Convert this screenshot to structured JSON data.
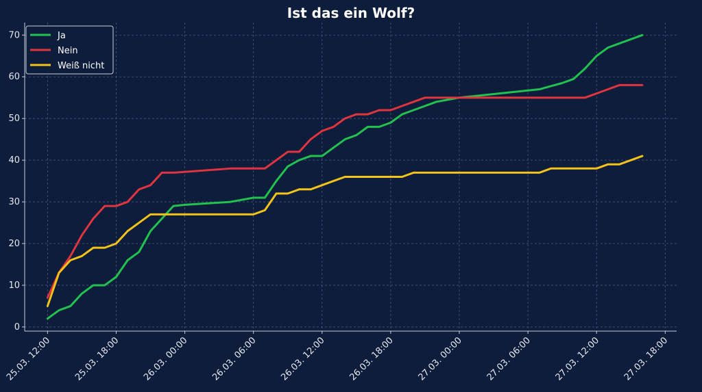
{
  "chart_data": {
    "type": "line",
    "title": "Ist das ein Wolf?",
    "xlabel": "",
    "ylabel": "",
    "x_unit": "hours since 25.03. 12:00",
    "xlim": [
      -2,
      55
    ],
    "ylim": [
      -1,
      73
    ],
    "yticks": [
      0,
      10,
      20,
      30,
      40,
      50,
      60,
      70
    ],
    "xticks": [
      {
        "value": 0,
        "label": "25.03. 12:00"
      },
      {
        "value": 6,
        "label": "25.03. 18:00"
      },
      {
        "value": 12,
        "label": "26.03. 00:00"
      },
      {
        "value": 18,
        "label": "26.03. 06:00"
      },
      {
        "value": 24,
        "label": "26.03. 12:00"
      },
      {
        "value": 30,
        "label": "26.03. 18:00"
      },
      {
        "value": 36,
        "label": "27.03. 00:00"
      },
      {
        "value": 42,
        "label": "27.03. 06:00"
      },
      {
        "value": 48,
        "label": "27.03. 12:00"
      },
      {
        "value": 54,
        "label": "27.03. 18:00"
      }
    ],
    "grid": true,
    "legend_position": "top-left",
    "series": [
      {
        "name": "Ja",
        "color": "#22c24e",
        "points": [
          [
            0,
            2
          ],
          [
            1,
            4
          ],
          [
            2,
            5
          ],
          [
            3,
            8
          ],
          [
            4,
            10
          ],
          [
            5,
            10
          ],
          [
            6,
            12
          ],
          [
            7,
            16
          ],
          [
            8,
            18
          ],
          [
            9,
            23
          ],
          [
            10,
            26
          ],
          [
            11,
            29
          ],
          [
            12,
            29.3
          ],
          [
            16,
            30
          ],
          [
            18,
            31
          ],
          [
            19,
            31
          ],
          [
            20,
            35
          ],
          [
            21,
            38.5
          ],
          [
            22,
            40
          ],
          [
            23,
            41
          ],
          [
            24,
            41
          ],
          [
            25,
            43
          ],
          [
            26,
            45
          ],
          [
            27,
            46
          ],
          [
            28,
            48
          ],
          [
            29,
            48
          ],
          [
            30,
            49
          ],
          [
            31,
            51
          ],
          [
            32,
            52
          ],
          [
            33,
            53
          ],
          [
            34,
            54
          ],
          [
            35,
            54.5
          ],
          [
            36,
            55
          ],
          [
            43,
            57
          ],
          [
            45,
            58.5
          ],
          [
            46,
            59.5
          ],
          [
            47,
            62
          ],
          [
            48,
            65
          ],
          [
            49,
            67
          ],
          [
            50,
            68
          ],
          [
            51,
            69
          ],
          [
            52,
            70
          ]
        ]
      },
      {
        "name": "Nein",
        "color": "#e0353e",
        "points": [
          [
            0,
            7
          ],
          [
            1,
            13
          ],
          [
            2,
            17
          ],
          [
            3,
            22
          ],
          [
            4,
            26
          ],
          [
            5,
            29
          ],
          [
            6,
            29
          ],
          [
            7,
            30
          ],
          [
            8,
            33
          ],
          [
            9,
            34
          ],
          [
            10,
            37
          ],
          [
            11,
            37
          ],
          [
            16,
            38
          ],
          [
            19,
            38
          ],
          [
            20,
            40
          ],
          [
            21,
            42
          ],
          [
            22,
            42
          ],
          [
            23,
            45
          ],
          [
            24,
            47
          ],
          [
            25,
            48
          ],
          [
            26,
            50
          ],
          [
            27,
            51
          ],
          [
            28,
            51
          ],
          [
            29,
            52
          ],
          [
            30,
            52
          ],
          [
            31,
            53
          ],
          [
            32,
            54
          ],
          [
            33,
            55
          ],
          [
            34,
            55
          ],
          [
            47,
            55
          ],
          [
            48,
            56
          ],
          [
            49,
            57
          ],
          [
            50,
            58
          ],
          [
            52,
            58
          ]
        ]
      },
      {
        "name": "Weiß nicht",
        "color": "#f3c319",
        "points": [
          [
            0,
            5
          ],
          [
            1,
            13
          ],
          [
            2,
            16
          ],
          [
            3,
            17
          ],
          [
            4,
            19
          ],
          [
            5,
            19
          ],
          [
            6,
            20
          ],
          [
            7,
            23
          ],
          [
            8,
            25
          ],
          [
            9,
            27
          ],
          [
            18,
            27
          ],
          [
            19,
            28
          ],
          [
            20,
            32
          ],
          [
            21,
            32
          ],
          [
            22,
            33
          ],
          [
            23,
            33
          ],
          [
            24,
            34
          ],
          [
            25,
            35
          ],
          [
            26,
            36
          ],
          [
            31,
            36
          ],
          [
            32,
            37
          ],
          [
            43,
            37
          ],
          [
            44,
            38
          ],
          [
            48,
            38
          ],
          [
            49,
            39
          ],
          [
            50,
            39
          ],
          [
            52,
            41
          ]
        ]
      }
    ]
  }
}
